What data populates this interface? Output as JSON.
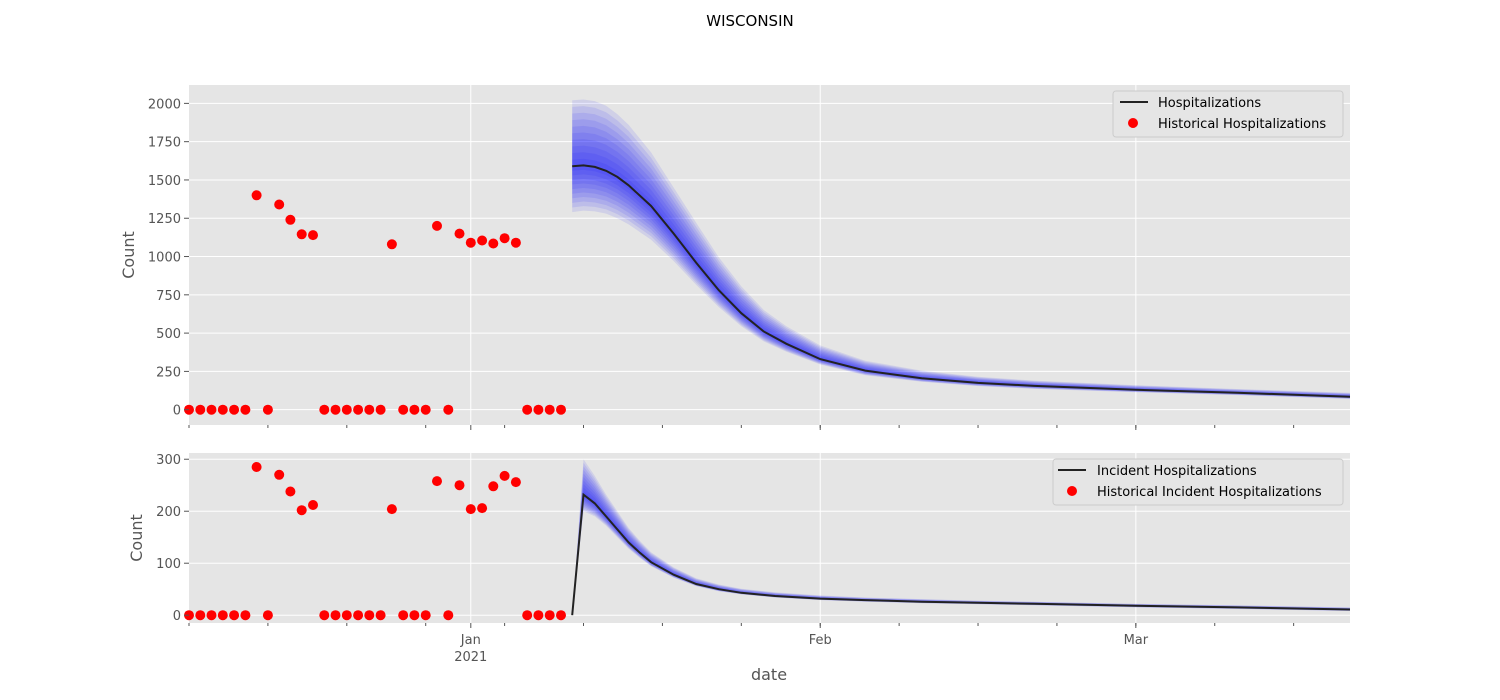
{
  "chart_data": [
    {
      "type": "line",
      "suptitle": "WISCONSIN",
      "ylabel": "Count",
      "xlabel": "",
      "xlim": [
        "2020-12-07",
        "2021-03-20"
      ],
      "ylim": [
        -100,
        2120
      ],
      "y_ticks": [
        0,
        250,
        500,
        750,
        1000,
        1250,
        1500,
        1750,
        2000
      ],
      "legend_position": "top-right",
      "grid": true,
      "series": [
        {
          "name": "Hospitalizations",
          "style": "line",
          "color": "#222222",
          "x": [
            "2021-01-10",
            "2021-01-11",
            "2021-01-12",
            "2021-01-13",
            "2021-01-14",
            "2021-01-15",
            "2021-01-17",
            "2021-01-19",
            "2021-01-21",
            "2021-01-23",
            "2021-01-25",
            "2021-01-27",
            "2021-01-29",
            "2021-02-01",
            "2021-02-05",
            "2021-02-10",
            "2021-02-15",
            "2021-02-20",
            "2021-03-01",
            "2021-03-10",
            "2021-03-20"
          ],
          "y": [
            1590,
            1595,
            1585,
            1560,
            1520,
            1465,
            1330,
            1150,
            960,
            780,
            630,
            510,
            430,
            330,
            255,
            205,
            175,
            155,
            130,
            110,
            85
          ],
          "band_lower": [
            1290,
            1300,
            1295,
            1280,
            1250,
            1210,
            1110,
            970,
            815,
            670,
            545,
            445,
            378,
            295,
            225,
            182,
            154,
            136,
            114,
            95,
            70
          ],
          "band_upper": [
            2020,
            2025,
            2015,
            1985,
            1930,
            1860,
            1680,
            1450,
            1220,
            995,
            805,
            650,
            545,
            420,
            320,
            255,
            215,
            190,
            160,
            135,
            110
          ]
        },
        {
          "name": "Historical Hospitalizations",
          "style": "scatter",
          "color": "#ff0000",
          "x": [
            "2020-12-07",
            "2020-12-08",
            "2020-12-09",
            "2020-12-10",
            "2020-12-11",
            "2020-12-12",
            "2020-12-13",
            "2020-12-14",
            "2020-12-15",
            "2020-12-16",
            "2020-12-17",
            "2020-12-18",
            "2020-12-19",
            "2020-12-20",
            "2020-12-21",
            "2020-12-22",
            "2020-12-23",
            "2020-12-24",
            "2020-12-25",
            "2020-12-26",
            "2020-12-27",
            "2020-12-28",
            "2020-12-29",
            "2020-12-30",
            "2020-12-31",
            "2021-01-01",
            "2021-01-02",
            "2021-01-03",
            "2021-01-04",
            "2021-01-05",
            "2021-01-06",
            "2021-01-07",
            "2021-01-08",
            "2021-01-09"
          ],
          "y": [
            0,
            0,
            0,
            0,
            0,
            0,
            1400,
            0,
            1340,
            1240,
            1145,
            1140,
            0,
            0,
            0,
            0,
            0,
            0,
            1080,
            0,
            0,
            0,
            1200,
            0,
            1150,
            1090,
            1105,
            1085,
            1120,
            1090,
            0,
            0,
            0,
            0
          ],
          "visible_x": [
            "2020-12-07",
            "2020-12-08",
            "2020-12-09",
            "2020-12-10",
            "2020-12-11",
            "2020-12-12",
            "2020-12-13",
            "2020-12-14",
            "2020-12-15",
            "2020-12-16",
            "2020-12-17",
            "2020-12-18",
            "2020-12-19",
            "2020-12-20",
            "2020-12-21",
            "2020-12-22",
            "2020-12-23",
            "2020-12-24",
            "2020-12-25",
            "2020-12-26",
            "2020-12-27",
            "2020-12-28",
            "2020-12-29",
            "2020-12-30",
            "2020-12-31",
            "2021-01-01",
            "2021-01-02",
            "2021-01-03",
            "2021-01-04",
            "2021-01-05"
          ]
        }
      ]
    },
    {
      "type": "line",
      "ylabel": "Count",
      "xlabel": "date",
      "xlim": [
        "2020-12-07",
        "2021-03-20"
      ],
      "ylim": [
        -15,
        312
      ],
      "y_ticks": [
        0,
        100,
        200,
        300
      ],
      "x_ticks": [
        {
          "date": "2021-01-01",
          "label": "Jan",
          "sublabel": "2021"
        },
        {
          "date": "2021-02-01",
          "label": "Feb",
          "sublabel": ""
        },
        {
          "date": "2021-03-01",
          "label": "Mar",
          "sublabel": ""
        }
      ],
      "legend_position": "top-right",
      "grid": true,
      "series": [
        {
          "name": "Incident Hospitalizations",
          "style": "line",
          "color": "#222222",
          "x": [
            "2021-01-10",
            "2021-01-11",
            "2021-01-12",
            "2021-01-13",
            "2021-01-14",
            "2021-01-15",
            "2021-01-16",
            "2021-01-17",
            "2021-01-19",
            "2021-01-21",
            "2021-01-23",
            "2021-01-25",
            "2021-01-28",
            "2021-02-01",
            "2021-02-05",
            "2021-02-10",
            "2021-02-15",
            "2021-02-20",
            "2021-03-01",
            "2021-03-10",
            "2021-03-20"
          ],
          "y": [
            0,
            232,
            215,
            190,
            165,
            140,
            120,
            102,
            78,
            60,
            50,
            43,
            37,
            32,
            29,
            26,
            24,
            22,
            18,
            15,
            11
          ],
          "band_lower": [
            0,
            200,
            190,
            172,
            150,
            128,
            110,
            94,
            72,
            56,
            46,
            40,
            34,
            29,
            26,
            23,
            21,
            19,
            15,
            12,
            8
          ],
          "band_upper": [
            0,
            300,
            268,
            232,
            200,
            168,
            143,
            121,
            92,
            71,
            59,
            51,
            44,
            38,
            34,
            31,
            28,
            26,
            22,
            19,
            15
          ]
        },
        {
          "name": "Historical Incident Hospitalizations",
          "style": "scatter",
          "color": "#ff0000",
          "x": [
            "2020-12-07",
            "2020-12-08",
            "2020-12-09",
            "2020-12-10",
            "2020-12-11",
            "2020-12-12",
            "2020-12-13",
            "2020-12-14",
            "2020-12-15",
            "2020-12-16",
            "2020-12-17",
            "2020-12-18",
            "2020-12-19",
            "2020-12-20",
            "2020-12-21",
            "2020-12-22",
            "2020-12-23",
            "2020-12-24",
            "2020-12-25",
            "2020-12-26",
            "2020-12-27",
            "2020-12-28",
            "2020-12-29",
            "2020-12-30",
            "2020-12-31",
            "2021-01-01",
            "2021-01-02",
            "2021-01-03",
            "2021-01-04",
            "2021-01-05",
            "2021-01-06",
            "2021-01-07",
            "2021-01-08",
            "2021-01-09"
          ],
          "y": [
            0,
            0,
            0,
            0,
            0,
            0,
            285,
            0,
            270,
            238,
            202,
            212,
            0,
            0,
            0,
            0,
            0,
            0,
            204,
            0,
            0,
            0,
            258,
            0,
            250,
            204,
            206,
            248,
            268,
            256,
            0,
            0,
            0,
            0
          ]
        }
      ]
    }
  ]
}
